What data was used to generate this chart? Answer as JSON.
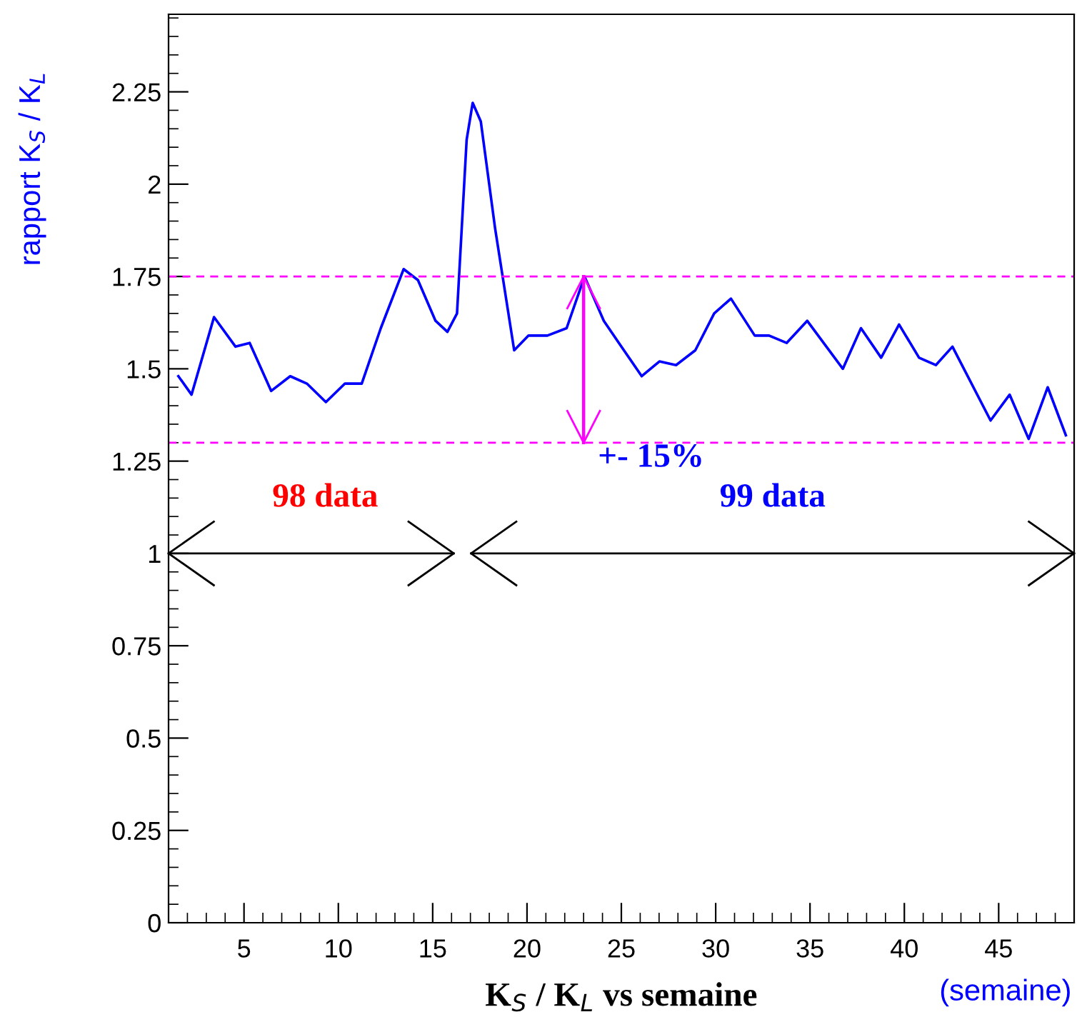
{
  "chart_data": {
    "type": "line",
    "xlabel": "K$_{S}$ / K$_{L}$ vs semaine",
    "ylabel": "rapport K$_{S}$ / K$_{L}$",
    "xlim": [
      1,
      49
    ],
    "ylim": [
      0,
      2.46
    ],
    "xticks": [
      5,
      10,
      15,
      20,
      25,
      30,
      35,
      40,
      45
    ],
    "yticks": [
      0,
      0.25,
      0.5,
      0.75,
      1,
      1.25,
      1.5,
      1.75,
      2,
      2.25
    ],
    "marker": "none",
    "line_style": "solid",
    "series": [
      {
        "color": "#0000ff",
        "x": [
          1.52,
          2.22,
          3.41,
          4.55,
          5.3,
          6.44,
          7.45,
          8.33,
          9.34,
          10.35,
          11.24,
          12.25,
          13.46,
          14.22,
          15.15,
          15.78,
          16.29,
          16.8,
          17.12,
          17.55,
          18.31,
          19.32,
          20.08,
          21.08,
          22.1,
          23.05,
          24.07,
          24.87,
          26.08,
          27.02,
          27.9,
          28.92,
          29.92,
          30.81,
          32.07,
          32.83,
          33.76,
          34.85,
          36.74,
          37.7,
          38.77,
          39.72,
          40.78,
          41.67,
          42.55,
          44.57,
          45.58,
          46.59,
          47.6,
          48.56
        ],
        "values": [
          1.48,
          1.43,
          1.64,
          1.56,
          1.57,
          1.44,
          1.48,
          1.46,
          1.41,
          1.46,
          1.46,
          1.61,
          1.77,
          1.74,
          1.63,
          1.6,
          1.65,
          2.12,
          2.22,
          2.17,
          1.88,
          1.55,
          1.59,
          1.59,
          1.61,
          1.75,
          1.63,
          1.57,
          1.48,
          1.52,
          1.51,
          1.55,
          1.65,
          1.69,
          1.59,
          1.59,
          1.57,
          1.63,
          1.5,
          1.61,
          1.53,
          1.62,
          1.53,
          1.51,
          1.56,
          1.36,
          1.43,
          1.31,
          1.45,
          1.32
        ]
      }
    ],
    "ref_lines": [
      {
        "axis": "y",
        "value": 1.75,
        "color": "#ff00ff",
        "line_style": "dashed"
      },
      {
        "axis": "y",
        "value": 1.3,
        "color": "#ff00ff",
        "line_style": "dashed"
      }
    ],
    "annotations": [
      "98 data",
      "99 data",
      {
        "text": "+- 15%",
        "x": 23,
        "y": 1.3
      },
      "(semaine)"
    ]
  }
}
